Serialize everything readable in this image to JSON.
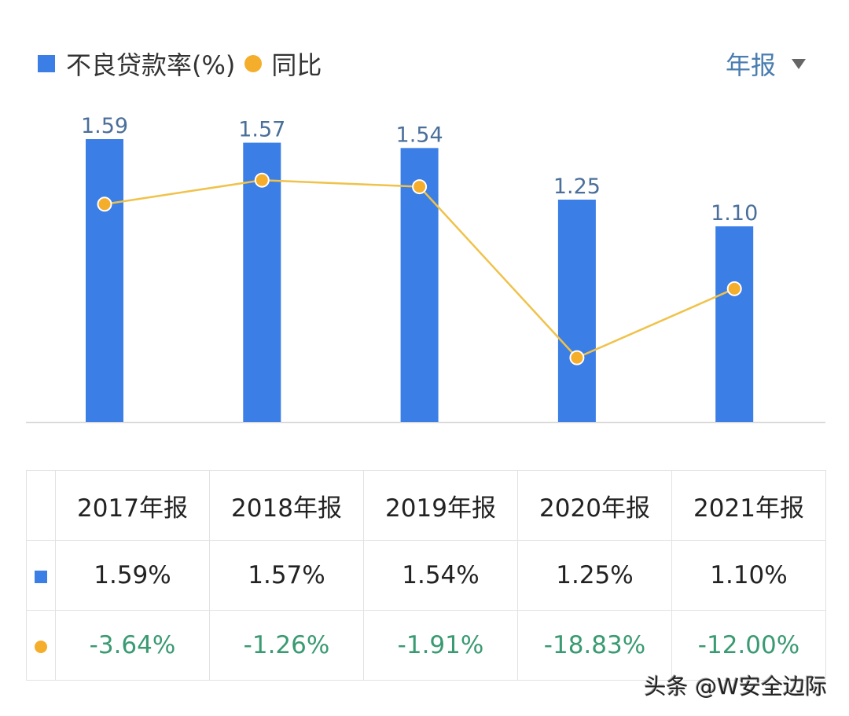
{
  "chart_data": {
    "type": "bar+line",
    "categories": [
      "2017年报",
      "2018年报",
      "2019年报",
      "2020年报",
      "2021年报"
    ],
    "series": [
      {
        "name": "不良贷款率(%)",
        "type": "bar",
        "values": [
          1.59,
          1.57,
          1.54,
          1.25,
          1.1
        ],
        "labels": [
          "1.59",
          "1.57",
          "1.54",
          "1.25",
          "1.10"
        ],
        "color": "#3a7ee6"
      },
      {
        "name": "同比",
        "type": "line",
        "values": [
          -3.64,
          -1.26,
          -1.91,
          -18.83,
          -12.0
        ],
        "color": "#f5ad2c"
      }
    ],
    "ylim": [
      0,
      1.59
    ],
    "grid": false,
    "legend": "top-left"
  },
  "legend": {
    "bar_label": "不良贷款率(%)",
    "line_label": "同比"
  },
  "period_selector": {
    "label": "年报"
  },
  "table": {
    "headers": [
      "2017年报",
      "2018年报",
      "2019年报",
      "2020年报",
      "2021年报"
    ],
    "rate_row": [
      "1.59%",
      "1.57%",
      "1.54%",
      "1.25%",
      "1.10%"
    ],
    "yoy_row": [
      "-3.64%",
      "-1.26%",
      "-1.91%",
      "-18.83%",
      "-12.00%"
    ]
  },
  "watermark": "头条 @W安全边际",
  "colors": {
    "bar": "#3a7ee6",
    "line": "#f0c24a",
    "point": "#f5ad2c",
    "positive_text": "#3a9a72",
    "label": "#4a6f9a"
  }
}
